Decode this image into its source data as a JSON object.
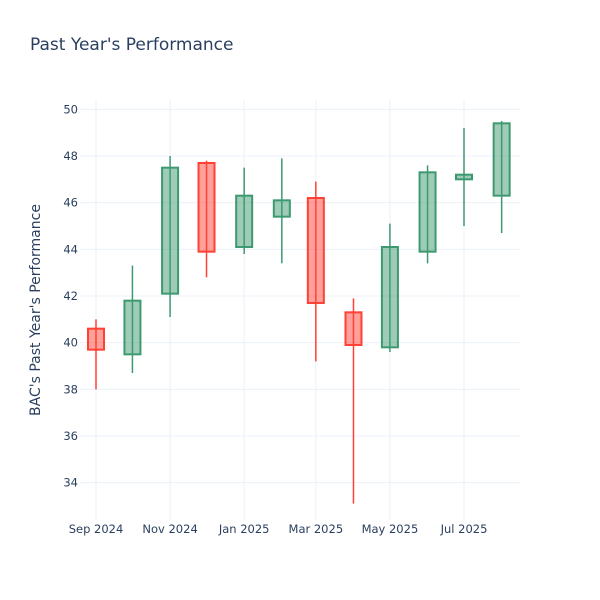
{
  "chart_data": {
    "type": "candlestick",
    "title": "Past Year's Performance",
    "xlabel": "",
    "ylabel": "BAC's Past Year's Performance",
    "ylim": [
      32.4,
      50.4
    ],
    "yticks": [
      34,
      36,
      38,
      40,
      42,
      44,
      46,
      48,
      50
    ],
    "xticks": [
      {
        "label": "Sep 2024",
        "date": "2024-09-01"
      },
      {
        "label": "Nov 2024",
        "date": "2024-11-01"
      },
      {
        "label": "Jan 2025",
        "date": "2025-01-01"
      },
      {
        "label": "Mar 2025",
        "date": "2025-03-01"
      },
      {
        "label": "May 2025",
        "date": "2025-05-01"
      },
      {
        "label": "Jul 2025",
        "date": "2025-07-01"
      }
    ],
    "grid": true,
    "legend": "none",
    "colors": {
      "increasing": "#3d9970",
      "decreasing": "#ff4136",
      "increasing_fill": "#9ecae1",
      "grid": "#ebf0f8",
      "text": "#2a3f5f"
    },
    "candles": [
      {
        "date": "2024-09-01",
        "open": 40.6,
        "high": 41.0,
        "low": 38.0,
        "close": 39.7
      },
      {
        "date": "2024-10-01",
        "open": 39.5,
        "high": 43.3,
        "low": 38.7,
        "close": 41.8
      },
      {
        "date": "2024-11-01",
        "open": 42.1,
        "high": 48.0,
        "low": 41.1,
        "close": 47.5
      },
      {
        "date": "2024-12-01",
        "open": 47.7,
        "high": 47.8,
        "low": 42.8,
        "close": 43.9
      },
      {
        "date": "2025-01-01",
        "open": 44.1,
        "high": 47.5,
        "low": 43.8,
        "close": 46.3
      },
      {
        "date": "2025-02-01",
        "open": 45.4,
        "high": 47.9,
        "low": 43.4,
        "close": 46.1
      },
      {
        "date": "2025-03-01",
        "open": 46.2,
        "high": 46.9,
        "low": 39.2,
        "close": 41.7
      },
      {
        "date": "2025-04-01",
        "open": 41.3,
        "high": 41.9,
        "low": 33.1,
        "close": 39.9
      },
      {
        "date": "2025-05-01",
        "open": 39.8,
        "high": 45.1,
        "low": 39.6,
        "close": 44.1
      },
      {
        "date": "2025-06-01",
        "open": 43.9,
        "high": 47.6,
        "low": 43.4,
        "close": 47.3
      },
      {
        "date": "2025-07-01",
        "open": 47.0,
        "high": 49.2,
        "low": 45.0,
        "close": 47.2
      },
      {
        "date": "2025-08-01",
        "open": 46.3,
        "high": 49.5,
        "low": 44.7,
        "close": 49.4
      }
    ]
  }
}
